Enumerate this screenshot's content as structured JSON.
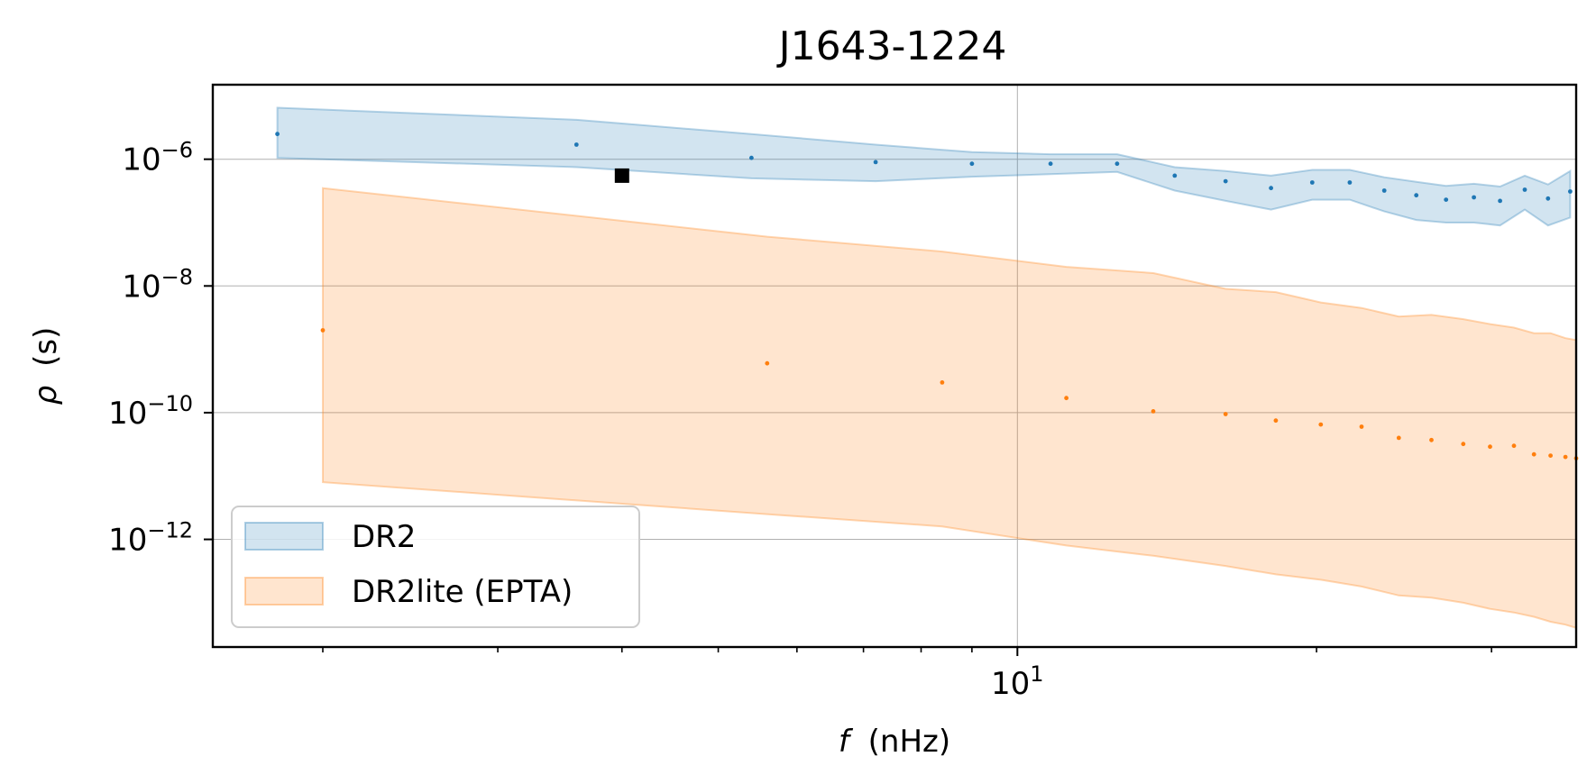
{
  "chart_data": {
    "type": "area",
    "title": "J1643-1224",
    "xlabel_var": "f",
    "xlabel_unit": "(nHz)",
    "ylabel_var": "ρ",
    "ylabel_unit": "(s)",
    "x_scale": "log",
    "y_scale": "log",
    "xlim": [
      1.55,
      36.5
    ],
    "ylim": [
      2e-14,
      1.5e-05
    ],
    "grid": true,
    "legend_position": "lower-left",
    "x_ticks": [
      {
        "value": 10,
        "base": "10",
        "exp": "1"
      }
    ],
    "y_ticks": [
      {
        "value": 1e-06,
        "base": "10",
        "exp": "−6"
      },
      {
        "value": 1e-08,
        "base": "10",
        "exp": "−8"
      },
      {
        "value": 1e-10,
        "base": "10",
        "exp": "−10"
      },
      {
        "value": 1e-12,
        "base": "10",
        "exp": "−12"
      }
    ],
    "x_minor_ticks": [
      2,
      3,
      4,
      5,
      6,
      7,
      8,
      9,
      20,
      30
    ],
    "series": [
      {
        "name": "DR2",
        "color": "#1f77b4",
        "fill": "#1f77b4",
        "fill_opacity": 0.2,
        "x": [
          1.8,
          3.6,
          5.4,
          7.2,
          9.0,
          10.8,
          12.6,
          14.4,
          16.2,
          18.0,
          19.8,
          21.6,
          23.4,
          25.2,
          27.0,
          28.8,
          30.6,
          32.4,
          34.2,
          36.0
        ],
        "y": [
          2.5e-06,
          1.7e-06,
          1.05e-06,
          9e-07,
          8.5e-07,
          8.5e-07,
          8.5e-07,
          5.5e-07,
          4.5e-07,
          3.5e-07,
          4.3e-07,
          4.3e-07,
          3.2e-07,
          2.7e-07,
          2.3e-07,
          2.5e-07,
          2.2e-07,
          3.3e-07,
          2.4e-07,
          3.1e-07
        ],
        "upper": [
          6.5e-06,
          4.2e-06,
          2.5e-06,
          1.7e-06,
          1.3e-06,
          1.2e-06,
          1.2e-06,
          7.5e-07,
          6.5e-07,
          5.5e-07,
          6.8e-07,
          6.8e-07,
          5.2e-07,
          4.4e-07,
          3.8e-07,
          4.1e-07,
          3.7e-07,
          5.5e-07,
          4e-07,
          6.5e-07
        ],
        "lower": [
          1.05e-06,
          7.5e-07,
          5e-07,
          4.5e-07,
          5.3e-07,
          5.8e-07,
          6.3e-07,
          3.2e-07,
          2.2e-07,
          1.6e-07,
          2.3e-07,
          2.3e-07,
          1.5e-07,
          1.1e-07,
          1e-07,
          1e-07,
          9e-08,
          1.6e-07,
          9e-08,
          1.2e-07
        ]
      },
      {
        "name": "DR2lite (EPTA)",
        "color": "#ff7f0e",
        "fill": "#ff7f0e",
        "fill_opacity": 0.2,
        "x": [
          2.0,
          5.6,
          8.4,
          11.2,
          13.7,
          16.2,
          18.2,
          20.2,
          22.2,
          24.2,
          26.1,
          28.1,
          29.9,
          31.6,
          33.1,
          34.4,
          35.6,
          36.5
        ],
        "y": [
          2e-09,
          6e-10,
          3e-10,
          1.7e-10,
          1.05e-10,
          9.5e-11,
          7.5e-11,
          6.5e-11,
          6e-11,
          4e-11,
          3.7e-11,
          3.2e-11,
          2.9e-11,
          3e-11,
          2.2e-11,
          2.1e-11,
          2e-11,
          1.9e-11
        ],
        "upper": [
          3.5e-07,
          6e-08,
          3.5e-08,
          2e-08,
          1.6e-08,
          9e-09,
          8e-09,
          5.5e-09,
          4.5e-09,
          3.3e-09,
          3.5e-09,
          3e-09,
          2.5e-09,
          2.2e-09,
          1.8e-09,
          1.8e-09,
          1.5e-09,
          1.4e-09
        ],
        "lower": [
          8e-12,
          2.5e-12,
          1.6e-12,
          8e-13,
          5.5e-13,
          3.8e-13,
          2.8e-13,
          2.3e-13,
          1.8e-13,
          1.3e-13,
          1.2e-13,
          1e-13,
          8e-14,
          7e-14,
          6e-14,
          5e-14,
          4.5e-14,
          4e-14
        ]
      }
    ],
    "markers": [
      {
        "x": 4.0,
        "y": 5.5e-07,
        "color": "#000000",
        "shape": "square"
      }
    ]
  }
}
